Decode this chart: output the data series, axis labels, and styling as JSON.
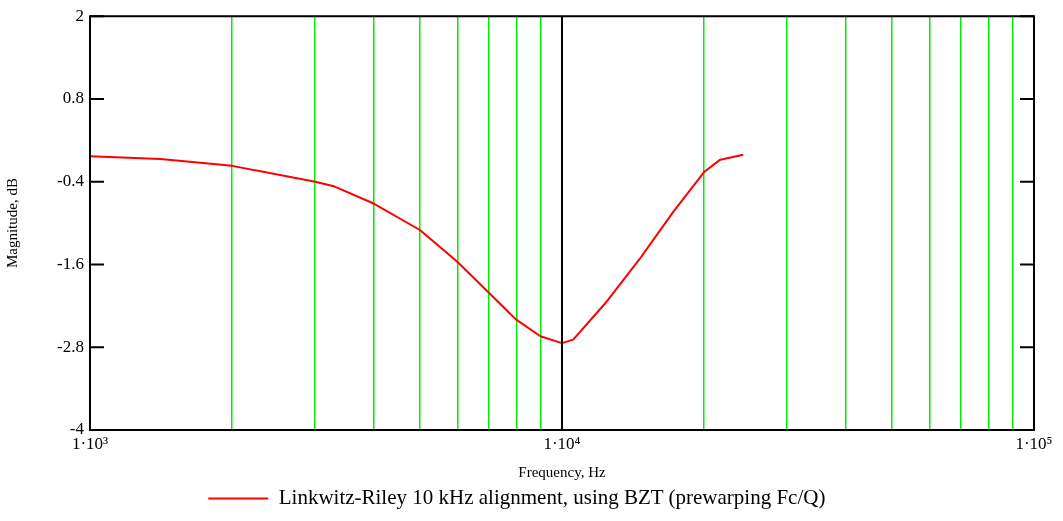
{
  "chart_data": {
    "type": "line",
    "xlabel": "Frequency, Hz",
    "ylabel": "Magnitude, dB",
    "series": [
      {
        "name": "Linkwitz-Riley 10 kHz alignment, using BZT (prewarping Fc/Q)",
        "color": "#ff0000",
        "x": [
          1000,
          1410,
          2000,
          3000,
          3300,
          4000,
          5000,
          6000,
          7000,
          8000,
          9000,
          10000,
          10560,
          12430,
          14610,
          17190,
          20000,
          21640,
          24210
        ],
        "values": [
          -0.03,
          -0.07,
          -0.17,
          -0.4,
          -0.47,
          -0.72,
          -1.1,
          -1.56,
          -2.01,
          -2.4,
          -2.64,
          -2.74,
          -2.69,
          -2.14,
          -1.52,
          -0.84,
          -0.26,
          -0.08,
          -0.01
        ]
      }
    ],
    "xlim": [
      1000,
      100000
    ],
    "xticks": [
      {
        "value": 1000,
        "label": "1·10³"
      },
      {
        "value": 2000,
        "label": null
      },
      {
        "value": 3000,
        "label": null
      },
      {
        "value": 4000,
        "label": null
      },
      {
        "value": 5000,
        "label": null
      },
      {
        "value": 6000,
        "label": null
      },
      {
        "value": 7000,
        "label": null
      },
      {
        "value": 8000,
        "label": null
      },
      {
        "value": 9000,
        "label": null
      },
      {
        "value": 10000,
        "label": "1·10⁴"
      },
      {
        "value": 20000,
        "label": null
      },
      {
        "value": 30000,
        "label": null
      },
      {
        "value": 40000,
        "label": null
      },
      {
        "value": 50000,
        "label": null
      },
      {
        "value": 60000,
        "label": null
      },
      {
        "value": 70000,
        "label": null
      },
      {
        "value": 80000,
        "label": null
      },
      {
        "value": 90000,
        "label": null
      },
      {
        "value": 100000,
        "label": "1·10⁵"
      }
    ],
    "ylim": [
      -4,
      2
    ],
    "yticks": [
      -4,
      -2.8,
      -1.6,
      -0.4,
      0.8,
      2
    ],
    "ref_lines": [
      {
        "axis": "x",
        "value": 10000,
        "color": "#000000"
      }
    ],
    "log": "x",
    "grid": "x",
    "legend": "bottom",
    "marker": "none",
    "line_style": "solid"
  }
}
